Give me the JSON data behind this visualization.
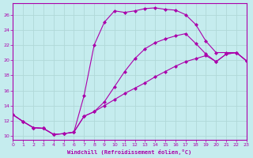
{
  "xlabel": "Windchill (Refroidissement éolien,°C)",
  "bg_color": "#c5ecee",
  "line_color": "#aa00aa",
  "xlim": [
    0,
    23
  ],
  "ylim": [
    9.5,
    27.5
  ],
  "xticks": [
    0,
    1,
    2,
    3,
    4,
    5,
    6,
    7,
    8,
    9,
    10,
    11,
    12,
    13,
    14,
    15,
    16,
    17,
    18,
    19,
    20,
    21,
    22,
    23
  ],
  "yticks": [
    10,
    12,
    14,
    16,
    18,
    20,
    22,
    24,
    26
  ],
  "grid_color": "#b0d8d8",
  "curve1_x": [
    0,
    1,
    2,
    3,
    4,
    5,
    6,
    7,
    8,
    9,
    10,
    11,
    12,
    13,
    14,
    15,
    16,
    17,
    18,
    19,
    20,
    21,
    22,
    23
  ],
  "curve1_y": [
    12.8,
    11.9,
    11.1,
    11.0,
    10.2,
    10.3,
    10.5,
    15.3,
    22.0,
    25.0,
    26.5,
    26.3,
    26.5,
    26.8,
    26.9,
    26.7,
    26.6,
    26.0,
    24.7,
    22.5,
    21.0,
    21.0,
    21.0,
    19.9
  ],
  "curve2_x": [
    0,
    1,
    2,
    3,
    4,
    5,
    6,
    7,
    8,
    9,
    10,
    11,
    12,
    13,
    14,
    15,
    16,
    17,
    18,
    19,
    20,
    21,
    22,
    23
  ],
  "curve2_y": [
    12.8,
    11.9,
    11.1,
    11.0,
    10.2,
    10.3,
    10.5,
    12.6,
    13.2,
    14.5,
    16.5,
    18.5,
    20.2,
    21.5,
    22.3,
    22.8,
    23.2,
    23.5,
    22.2,
    20.8,
    19.8,
    20.8,
    21.0,
    19.9
  ],
  "curve3_x": [
    0,
    1,
    2,
    3,
    4,
    5,
    6,
    7,
    8,
    9,
    10,
    11,
    12,
    13,
    14,
    15,
    16,
    17,
    18,
    19,
    20,
    21,
    22,
    23
  ],
  "curve3_y": [
    12.8,
    11.9,
    11.1,
    11.0,
    10.2,
    10.3,
    10.5,
    12.6,
    13.2,
    14.0,
    14.8,
    15.6,
    16.3,
    17.0,
    17.8,
    18.5,
    19.2,
    19.8,
    20.2,
    20.6,
    19.8,
    20.8,
    21.0,
    19.9
  ]
}
